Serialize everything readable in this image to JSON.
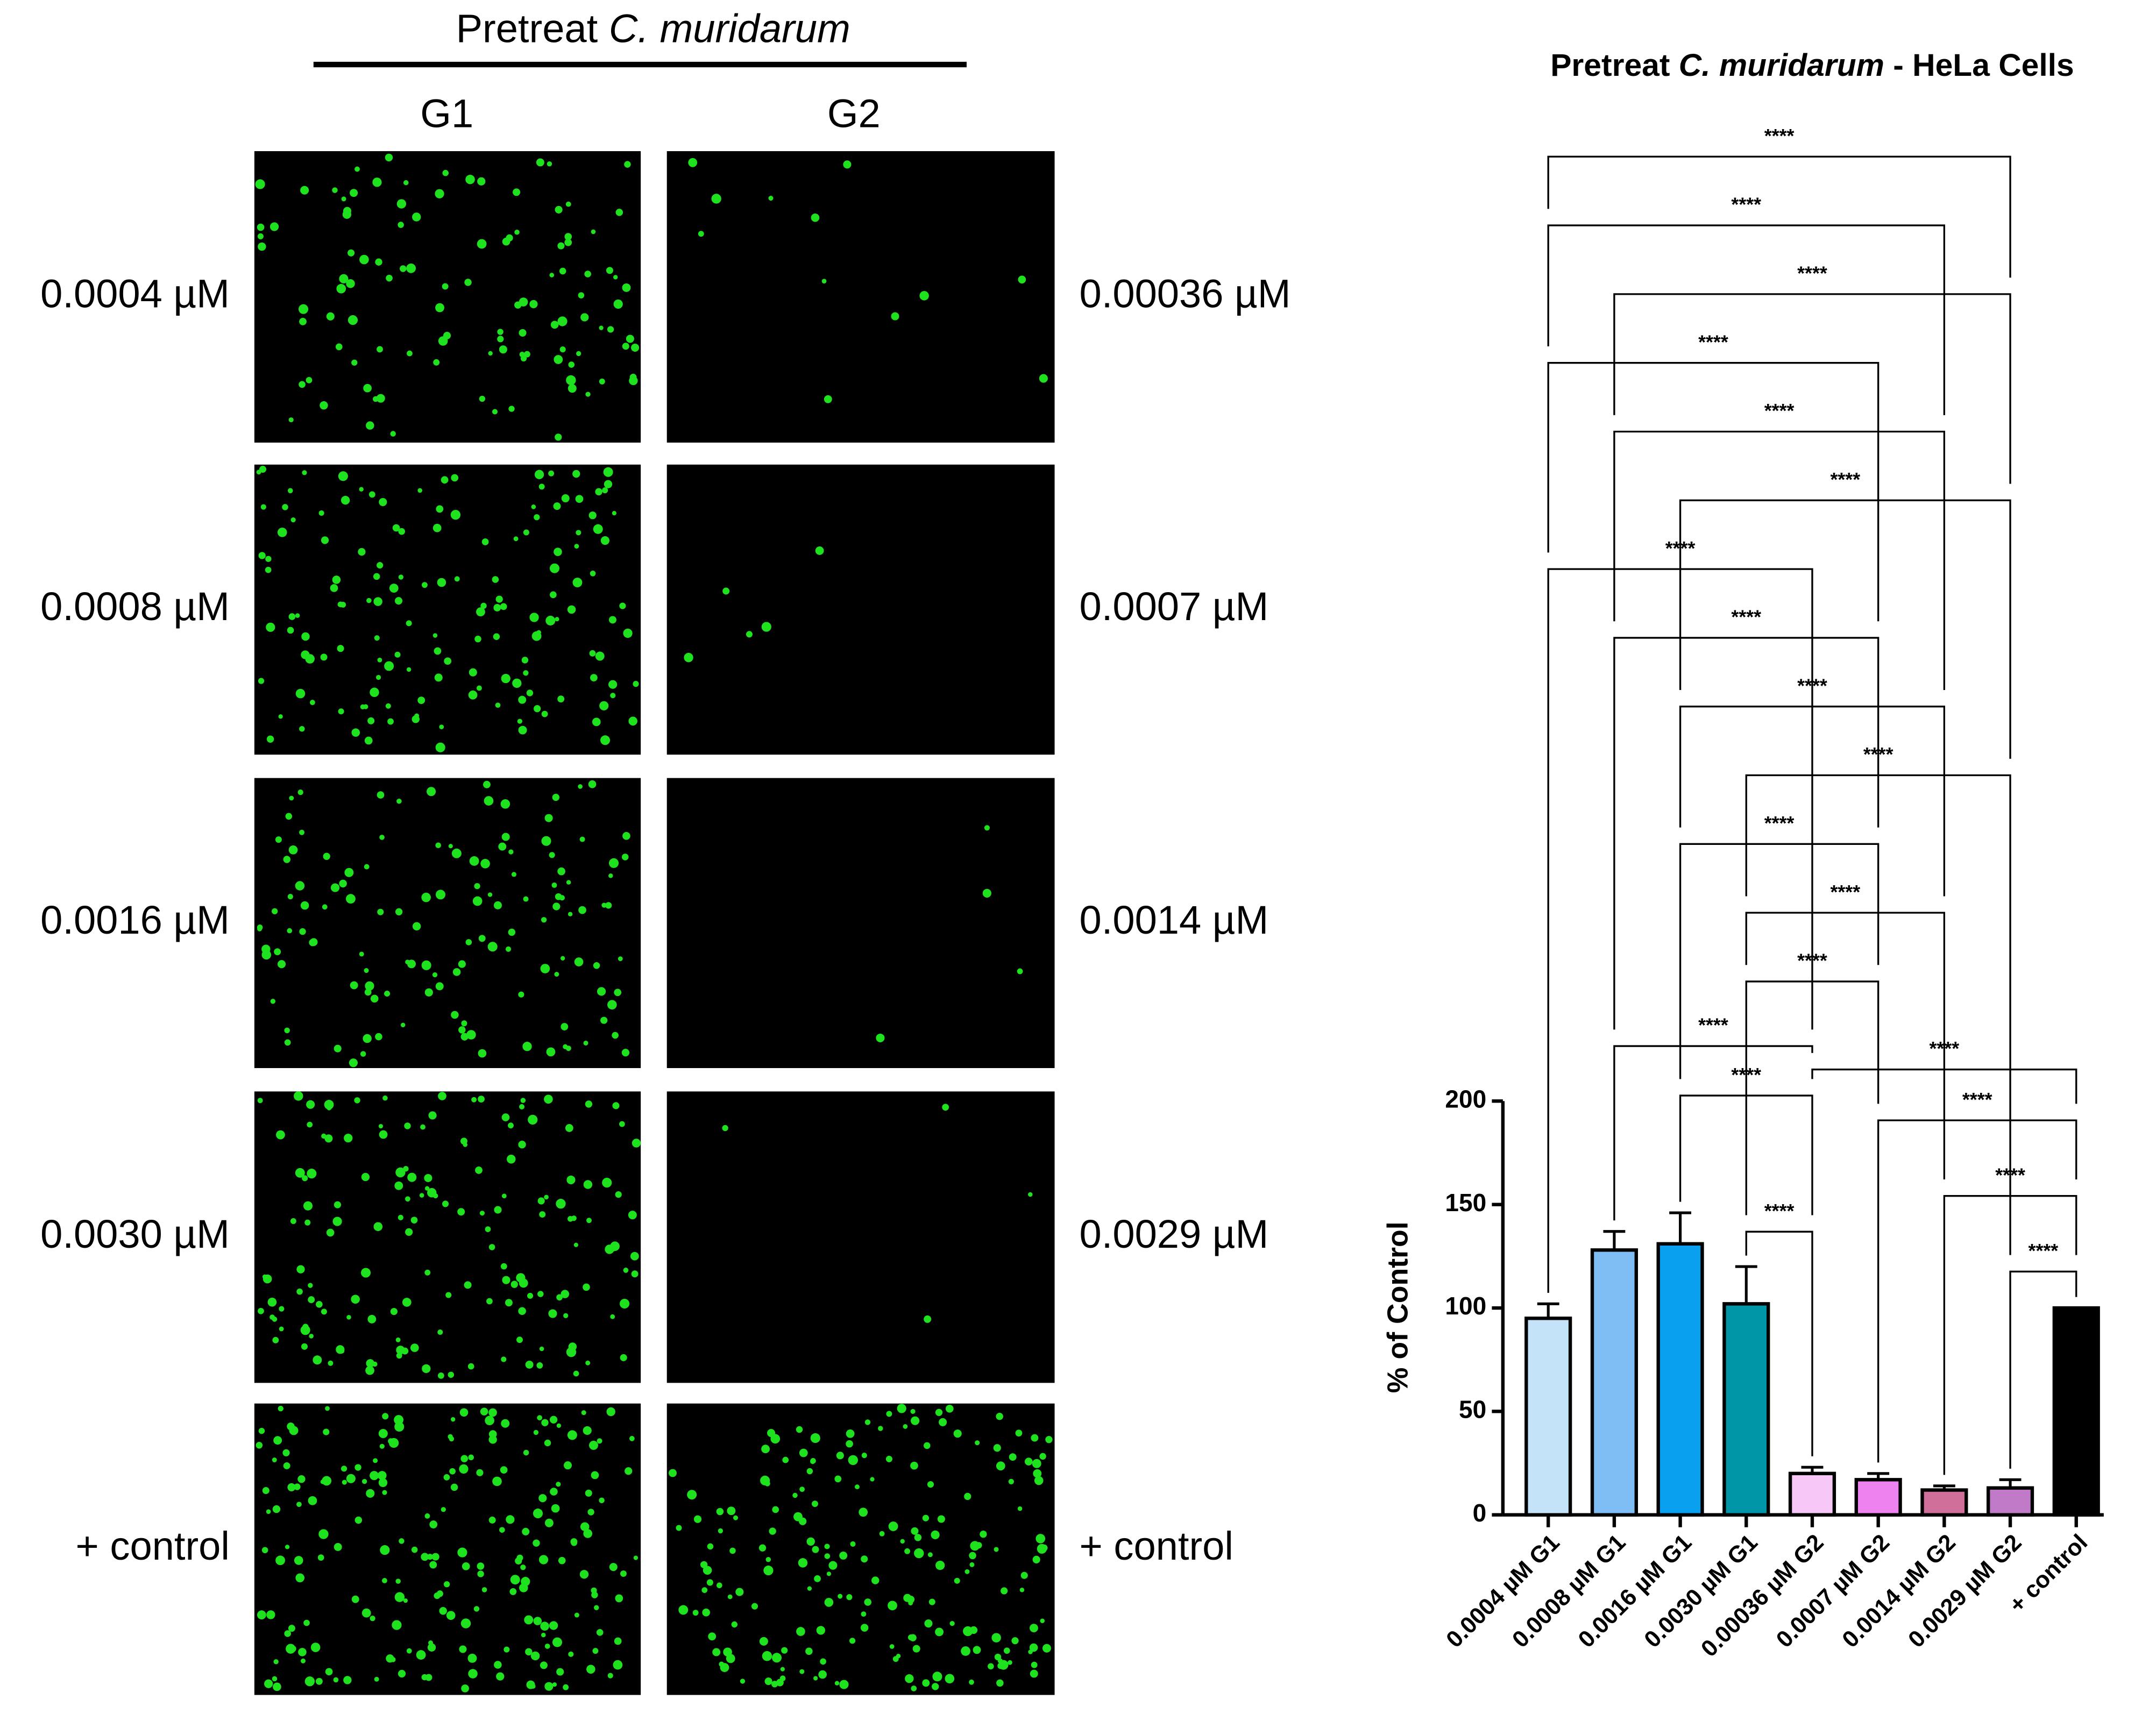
{
  "image_panel": {
    "title_parts": [
      "Pretreat",
      "C. muridarum"
    ],
    "columns": [
      "G1",
      "G2"
    ],
    "rows": [
      {
        "left": "0.0004 µM",
        "right": "0.00036 µM"
      },
      {
        "left": "0.0008 µM",
        "right": "0.0007 µM"
      },
      {
        "left": "0.0016 µM",
        "right": "0.0014 µM"
      },
      {
        "left": "0.0030 µM",
        "right": "0.0029 µM"
      },
      {
        "left": "+ control",
        "right": "+ control"
      }
    ]
  },
  "chart_data": {
    "type": "bar",
    "title_parts": [
      "Pretreat",
      "C. muridarum",
      "- HeLa Cells"
    ],
    "ylabel": "% of Control",
    "categories": [
      "0.0004 µM G1",
      "0.0008 µM G1",
      "0.0016 µM G1",
      "0.0030 µM G1",
      "0.00036 µM G2",
      "0.0007 µM G2",
      "0.0014 µM G2",
      "0.0029 µM G2",
      "+ control"
    ],
    "values": [
      95,
      128,
      131,
      102,
      20,
      17,
      12,
      13,
      100
    ],
    "errors": [
      7,
      9,
      15,
      18,
      3,
      3,
      2,
      4,
      null
    ],
    "colors": [
      "#c5e3f8",
      "#7fbef5",
      "#0aa0f0",
      "#0096a8",
      "#f7c8f7",
      "#ee82ee",
      "#d0709a",
      "#c07ac8",
      "#000000"
    ],
    "ylim": [
      0,
      200
    ],
    "yticks": [
      0,
      50,
      100,
      150,
      200
    ],
    "comparisons": [
      {
        "groups": [
          0,
          7
        ],
        "label": "****"
      },
      {
        "groups": [
          0,
          6
        ],
        "label": "****"
      },
      {
        "groups": [
          1,
          7
        ],
        "label": "****"
      },
      {
        "groups": [
          0,
          5
        ],
        "label": "****"
      },
      {
        "groups": [
          1,
          6
        ],
        "label": "****"
      },
      {
        "groups": [
          2,
          7
        ],
        "label": "****"
      },
      {
        "groups": [
          0,
          4
        ],
        "label": "****"
      },
      {
        "groups": [
          1,
          5
        ],
        "label": "****"
      },
      {
        "groups": [
          2,
          6
        ],
        "label": "****"
      },
      {
        "groups": [
          3,
          7
        ],
        "label": "****"
      },
      {
        "groups": [
          2,
          5
        ],
        "label": "****"
      },
      {
        "groups": [
          3,
          6
        ],
        "label": "****"
      },
      {
        "groups": [
          3,
          5
        ],
        "label": "****"
      },
      {
        "groups": [
          1,
          4
        ],
        "label": "****"
      },
      {
        "groups": [
          2,
          4
        ],
        "label": "****"
      },
      {
        "groups": [
          4,
          8
        ],
        "label": "****"
      },
      {
        "groups": [
          5,
          8
        ],
        "label": "****"
      },
      {
        "groups": [
          6,
          8
        ],
        "label": "****"
      },
      {
        "groups": [
          7,
          8
        ],
        "label": "****"
      },
      {
        "groups": [
          3,
          4
        ],
        "label": "****"
      }
    ]
  }
}
